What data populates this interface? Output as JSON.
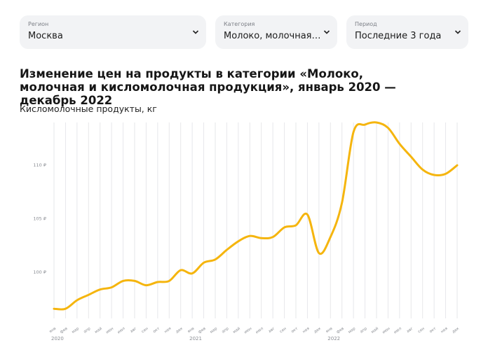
{
  "filters": [
    {
      "label": "Регион",
      "value": "Москва"
    },
    {
      "label": "Категория",
      "value": "Молоко, молочная и ..."
    },
    {
      "label": "Период",
      "value": "Последние 3 года"
    }
  ],
  "icons": {
    "dropdown": "chevron-down-icon"
  },
  "colors": {
    "line": "#f5b50e",
    "grid": "#e6e7ea",
    "filter_bg": "#f2f3f5"
  },
  "chart_data": {
    "type": "line",
    "title": "Изменение цен на продукты в категории «Молоко, молочная и кисломолочная продукция», январь 2020 — декабрь 2022",
    "subtitle": "Кисломолочные продукты, кг",
    "ylim": [
      95.7,
      114.0
    ],
    "y_ticks": [
      100,
      105,
      110
    ],
    "y_tick_labels": [
      "100 ₽",
      "105 ₽",
      "110 ₽"
    ],
    "x_tick_labels": [
      "янв",
      "фев",
      "мар",
      "апр",
      "май",
      "июн",
      "июл",
      "авг",
      "сен",
      "окт",
      "ноя",
      "дек",
      "янв",
      "фев",
      "мар",
      "апр",
      "май",
      "июн",
      "июл",
      "авг",
      "сен",
      "окт",
      "ноя",
      "дек",
      "янв",
      "фев",
      "мар",
      "апр",
      "май",
      "июн",
      "июл",
      "авг",
      "сен",
      "окт",
      "ноя",
      "дек"
    ],
    "year_labels": [
      {
        "index": 0,
        "label": "2020"
      },
      {
        "index": 12,
        "label": "2021"
      },
      {
        "index": 24,
        "label": "2022"
      }
    ],
    "grid": "vertical",
    "series": [
      {
        "values": [
          96.6,
          96.6,
          97.4,
          97.9,
          98.4,
          98.6,
          99.2,
          99.2,
          98.8,
          99.1,
          99.2,
          100.2,
          99.9,
          100.9,
          101.2,
          102.1,
          102.9,
          103.4,
          103.2,
          103.3,
          104.2,
          104.4,
          105.4,
          101.8,
          103.3,
          106.5,
          113.1,
          113.8,
          114.0,
          113.5,
          112.0,
          110.8,
          109.6,
          109.1,
          109.2,
          110.0
        ]
      }
    ]
  }
}
